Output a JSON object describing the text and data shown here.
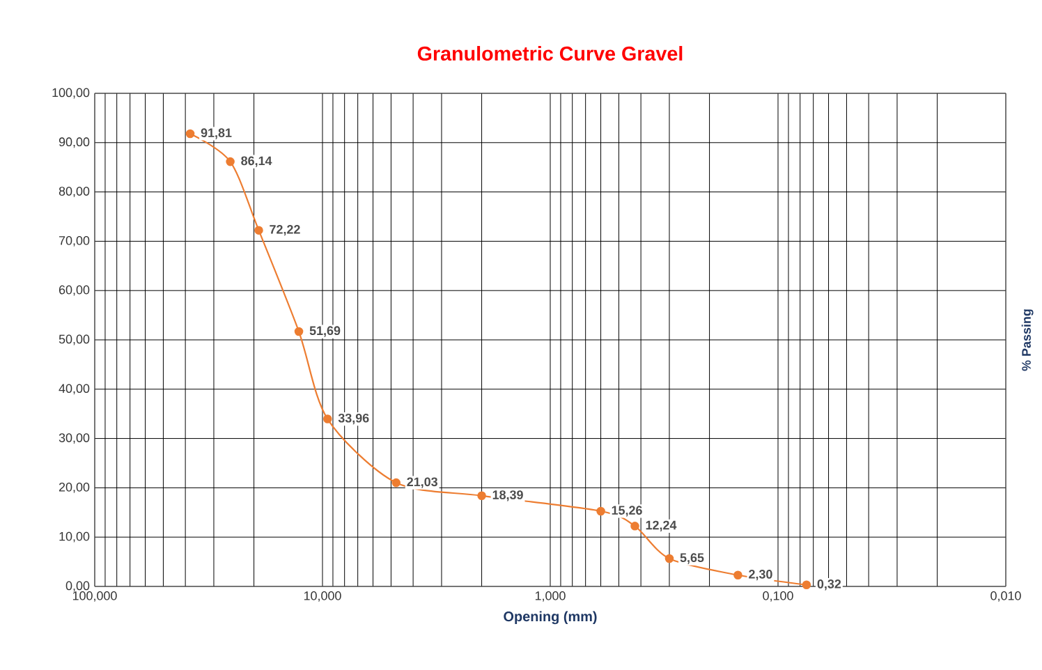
{
  "chart_data": {
    "type": "line",
    "title": "Granulometric Curve Gravel",
    "xlabel": "Opening (mm)",
    "ylabel": "% Passing",
    "x": [
      38.1,
      25.4,
      19.05,
      12.7,
      9.5,
      4.75,
      2.0,
      0.6,
      0.425,
      0.3,
      0.15,
      0.075
    ],
    "series": [
      {
        "color": "#ed7d31",
        "values": [
          91.81,
          86.14,
          72.22,
          51.69,
          33.96,
          21.03,
          18.39,
          15.26,
          12.24,
          5.65,
          2.3,
          0.32
        ],
        "value_labels": [
          "91,81",
          "86,14",
          "72,22",
          "51,69",
          "33,96",
          "21,03",
          "18,39",
          "15,26",
          "12,24",
          "5,65",
          "2,30",
          "0,32"
        ]
      }
    ],
    "log": "x",
    "xlim": [
      100,
      0.01
    ],
    "xticks": [
      {
        "value": 100,
        "label": "100,000"
      },
      {
        "value": 10,
        "label": "10,000"
      },
      {
        "value": 1,
        "label": "1,000"
      },
      {
        "value": 0.1,
        "label": "0,100"
      },
      {
        "value": 0.01,
        "label": "0,010"
      }
    ],
    "ylim": [
      0,
      100
    ],
    "yticks": [
      {
        "value": 0,
        "label": "0,00"
      },
      {
        "value": 10,
        "label": "10,00"
      },
      {
        "value": 20,
        "label": "20,00"
      },
      {
        "value": 30,
        "label": "30,00"
      },
      {
        "value": 40,
        "label": "40,00"
      },
      {
        "value": 50,
        "label": "50,00"
      },
      {
        "value": 60,
        "label": "60,00"
      },
      {
        "value": 70,
        "label": "70,00"
      },
      {
        "value": 80,
        "label": "80,00"
      },
      {
        "value": 90,
        "label": "90,00"
      },
      {
        "value": 100,
        "label": "100,00"
      }
    ],
    "grid": true,
    "marker": "circle",
    "line_style": "solid"
  }
}
